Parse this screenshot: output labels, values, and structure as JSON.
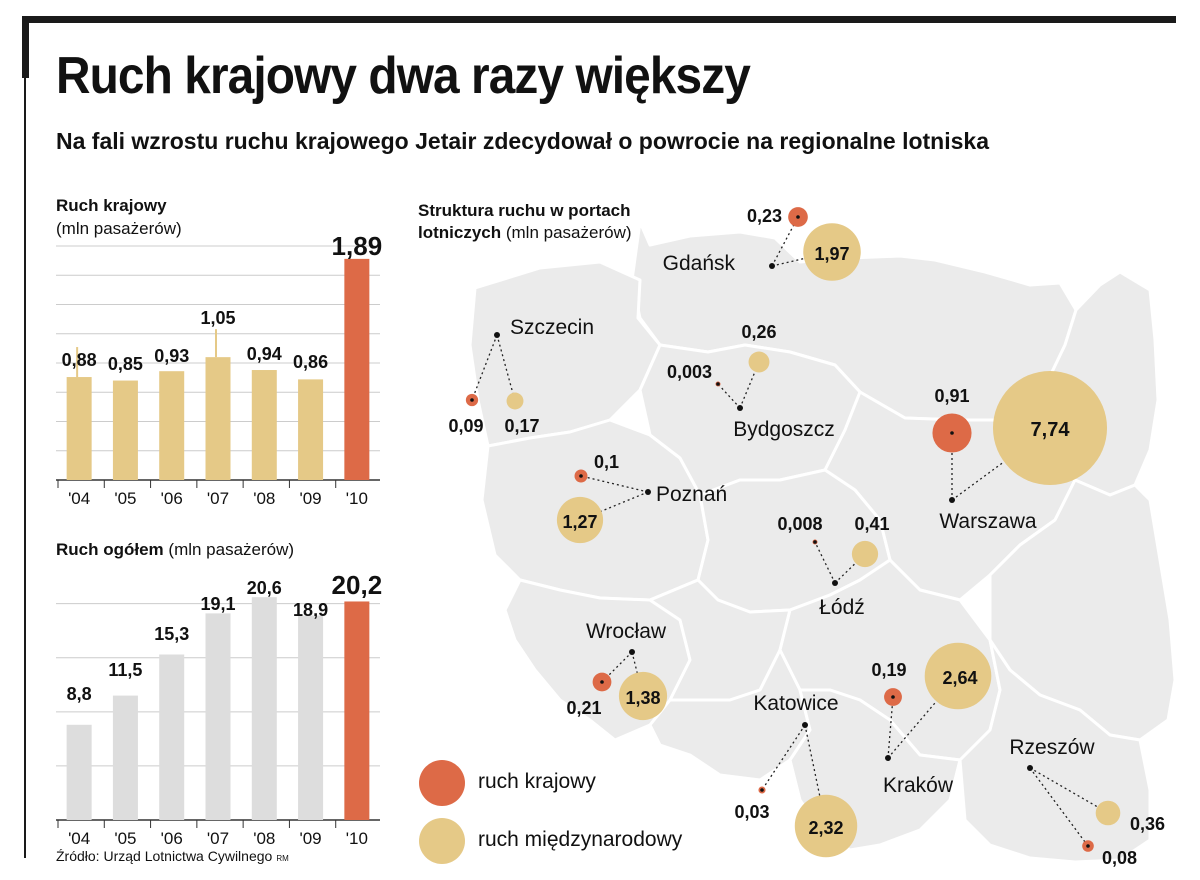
{
  "title": "Ruch krajowy dwa razy większy",
  "subtitle": "Na fali wzrostu ruchu krajowego Jetair zdecydował o powrocie na regionalne lotniska",
  "colors": {
    "domestic": "#dd6a47",
    "international": "#e5c987",
    "bar_light": "#dddddd",
    "map_fill": "#ebebeb"
  },
  "chart_data": [
    {
      "type": "bar",
      "title": "Ruch krajowy",
      "unit": "(mln pasażerów)",
      "categories": [
        "'04",
        "'05",
        "'06",
        "'07",
        "'08",
        "'09",
        "'10"
      ],
      "values": [
        0.88,
        0.85,
        0.93,
        1.05,
        0.94,
        0.86,
        1.89
      ],
      "labels": [
        "0,88",
        "0,85",
        "0,93",
        "1,05",
        "0,94",
        "0,86",
        "1,89"
      ],
      "ylim": [
        0,
        2.0
      ],
      "grid": true
    },
    {
      "type": "bar",
      "title": "Ruch ogółem",
      "unit": "(mln pasażerów)",
      "categories": [
        "'04",
        "'05",
        "'06",
        "'07",
        "'08",
        "'09",
        "'10"
      ],
      "values": [
        8.8,
        11.5,
        15.3,
        19.1,
        20.6,
        18.9,
        20.2
      ],
      "labels": [
        "8,8",
        "11,5",
        "15,3",
        "19,1",
        "20,6",
        "18,9",
        "20,2"
      ],
      "ylim": [
        0,
        22
      ],
      "grid": true
    },
    {
      "type": "bubble-map",
      "title_bold": "Struktura ruchu w portach lotniczych",
      "title_light": "(mln pasażerów)",
      "airports": [
        {
          "name": "Gdańsk",
          "domestic": 0.23,
          "domestic_label": "0,23",
          "international": 1.97,
          "international_label": "1,97"
        },
        {
          "name": "Szczecin",
          "domestic": 0.09,
          "domestic_label": "0,09",
          "international": 0.17,
          "international_label": "0,17"
        },
        {
          "name": "Bydgoszcz",
          "domestic": 0.003,
          "domestic_label": "0,003",
          "international": 0.26,
          "international_label": "0,26"
        },
        {
          "name": "Warszawa",
          "domestic": 0.91,
          "domestic_label": "0,91",
          "international": 7.74,
          "international_label": "7,74"
        },
        {
          "name": "Poznań",
          "domestic": 0.1,
          "domestic_label": "0,1",
          "international": 1.27,
          "international_label": "1,27"
        },
        {
          "name": "Łódź",
          "domestic": 0.008,
          "domestic_label": "0,008",
          "international": 0.41,
          "international_label": "0,41"
        },
        {
          "name": "Wrocław",
          "domestic": 0.21,
          "domestic_label": "0,21",
          "international": 1.38,
          "international_label": "1,38"
        },
        {
          "name": "Katowice",
          "domestic": 0.03,
          "domestic_label": "0,03",
          "international": 2.32,
          "international_label": "2,32"
        },
        {
          "name": "Kraków",
          "domestic": 0.19,
          "domestic_label": "0,19",
          "international": 2.64,
          "international_label": "2,64"
        },
        {
          "name": "Rzeszów",
          "domestic": 0.08,
          "domestic_label": "0,08",
          "international": 0.36,
          "international_label": "0,36"
        }
      ],
      "legend": [
        {
          "key": "domestic",
          "label": "ruch krajowy"
        },
        {
          "key": "international",
          "label": "ruch międzynarodowy"
        }
      ]
    }
  ],
  "source": "Źródło: Urząd Lotnictwa Cywilnego",
  "credit": "RM"
}
